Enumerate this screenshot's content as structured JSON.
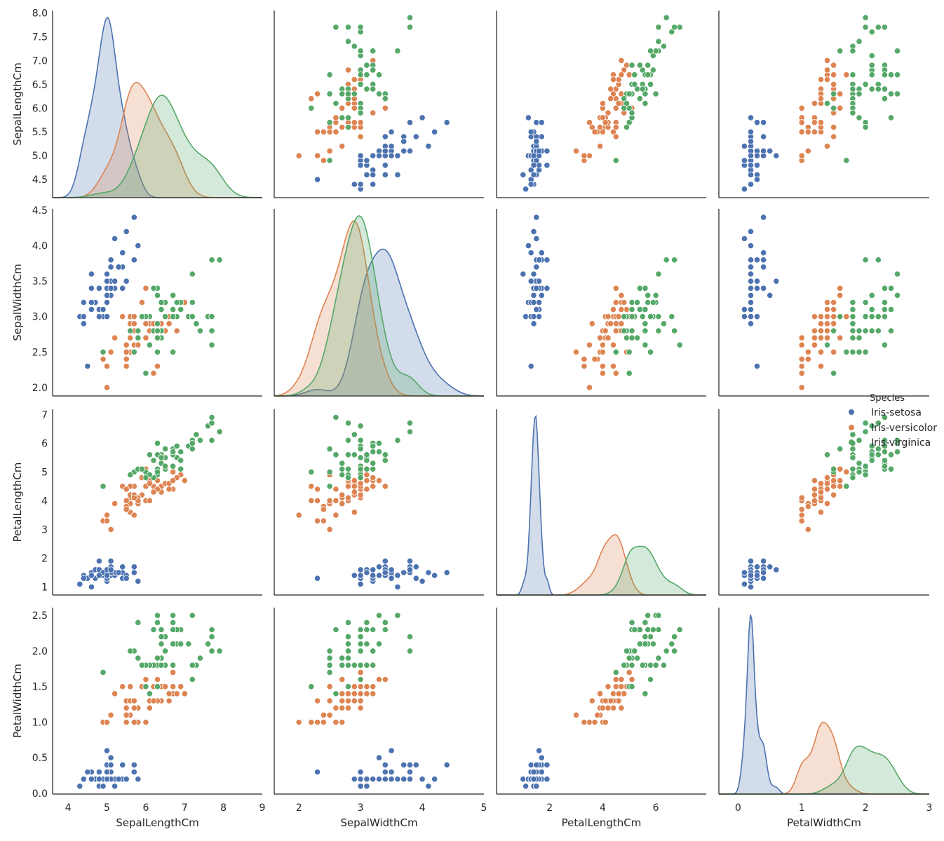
{
  "chart_data": {
    "type": "scatter",
    "variables": [
      "SepalLengthCm",
      "SepalWidthCm",
      "PetalLengthCm",
      "PetalWidthCm"
    ],
    "diagonal": "kde",
    "legend": {
      "title": "Species",
      "placement": "right",
      "entries": [
        "Iris-setosa",
        "Iris-versicolor",
        "Iris-virginica"
      ]
    },
    "colors": {
      "Iris-setosa": "#4c72b0",
      "Iris-versicolor": "#dd8452",
      "Iris-virginica": "#55a868"
    },
    "axes": {
      "SepalLengthCm": {
        "range": [
          3.6,
          9.0
        ],
        "ticks": [
          "4",
          "5",
          "6",
          "7",
          "8",
          "9"
        ],
        "row_range": [
          4.12,
          8.05
        ],
        "row_ticks": [
          "4.5",
          "5.0",
          "5.5",
          "6.0",
          "6.5",
          "7.0",
          "7.5",
          "8.0"
        ]
      },
      "SepalWidthCm": {
        "range": [
          1.6,
          5.0
        ],
        "ticks": [
          "2",
          "3",
          "4",
          "5"
        ],
        "row_range": [
          1.88,
          4.52
        ],
        "row_ticks": [
          "2.0",
          "2.5",
          "3.0",
          "3.5",
          "4.0",
          "4.5"
        ]
      },
      "PetalLengthCm": {
        "range": [
          0.0,
          7.9
        ],
        "ticks": [
          "2",
          "4",
          "6"
        ],
        "row_range": [
          0.72,
          7.18
        ],
        "row_ticks": [
          "1",
          "2",
          "3",
          "4",
          "5",
          "6",
          "7"
        ]
      },
      "PetalWidthCm": {
        "range": [
          -0.3,
          3.0
        ],
        "ticks": [
          "0",
          "1",
          "2",
          "3"
        ],
        "row_range": [
          -0.01,
          2.61
        ],
        "row_ticks": [
          "0.0",
          "0.5",
          "1.0",
          "1.5",
          "2.0",
          "2.5"
        ]
      }
    },
    "series": [
      {
        "name": "Iris-setosa",
        "points": [
          [
            5.1,
            3.5,
            1.4,
            0.2
          ],
          [
            4.9,
            3.0,
            1.4,
            0.2
          ],
          [
            4.7,
            3.2,
            1.3,
            0.2
          ],
          [
            4.6,
            3.1,
            1.5,
            0.2
          ],
          [
            5.0,
            3.6,
            1.4,
            0.2
          ],
          [
            5.4,
            3.9,
            1.7,
            0.4
          ],
          [
            4.6,
            3.4,
            1.4,
            0.3
          ],
          [
            5.0,
            3.4,
            1.5,
            0.2
          ],
          [
            4.4,
            2.9,
            1.4,
            0.2
          ],
          [
            4.9,
            3.1,
            1.5,
            0.1
          ],
          [
            5.4,
            3.7,
            1.5,
            0.2
          ],
          [
            4.8,
            3.4,
            1.6,
            0.2
          ],
          [
            4.8,
            3.0,
            1.4,
            0.1
          ],
          [
            4.3,
            3.0,
            1.1,
            0.1
          ],
          [
            5.8,
            4.0,
            1.2,
            0.2
          ],
          [
            5.7,
            4.4,
            1.5,
            0.4
          ],
          [
            5.4,
            3.9,
            1.3,
            0.4
          ],
          [
            5.1,
            3.5,
            1.4,
            0.3
          ],
          [
            5.7,
            3.8,
            1.7,
            0.3
          ],
          [
            5.1,
            3.8,
            1.5,
            0.3
          ],
          [
            5.4,
            3.4,
            1.7,
            0.2
          ],
          [
            5.1,
            3.7,
            1.5,
            0.4
          ],
          [
            4.6,
            3.6,
            1.0,
            0.2
          ],
          [
            5.1,
            3.3,
            1.7,
            0.5
          ],
          [
            4.8,
            3.4,
            1.9,
            0.2
          ],
          [
            5.0,
            3.0,
            1.6,
            0.2
          ],
          [
            5.0,
            3.4,
            1.6,
            0.4
          ],
          [
            5.2,
            3.5,
            1.5,
            0.2
          ],
          [
            5.2,
            3.4,
            1.4,
            0.2
          ],
          [
            4.7,
            3.2,
            1.6,
            0.2
          ],
          [
            4.8,
            3.1,
            1.6,
            0.2
          ],
          [
            5.4,
            3.4,
            1.5,
            0.4
          ],
          [
            5.2,
            4.1,
            1.5,
            0.1
          ],
          [
            5.5,
            4.2,
            1.4,
            0.2
          ],
          [
            4.9,
            3.1,
            1.5,
            0.1
          ],
          [
            5.0,
            3.2,
            1.2,
            0.2
          ],
          [
            5.5,
            3.5,
            1.3,
            0.2
          ],
          [
            4.9,
            3.1,
            1.5,
            0.1
          ],
          [
            4.4,
            3.0,
            1.3,
            0.2
          ],
          [
            5.1,
            3.4,
            1.5,
            0.2
          ],
          [
            5.0,
            3.5,
            1.3,
            0.3
          ],
          [
            4.5,
            2.3,
            1.3,
            0.3
          ],
          [
            4.4,
            3.2,
            1.3,
            0.2
          ],
          [
            5.0,
            3.5,
            1.6,
            0.6
          ],
          [
            5.1,
            3.8,
            1.9,
            0.4
          ],
          [
            4.8,
            3.0,
            1.4,
            0.3
          ],
          [
            5.1,
            3.8,
            1.6,
            0.2
          ],
          [
            4.6,
            3.2,
            1.4,
            0.2
          ],
          [
            5.3,
            3.7,
            1.5,
            0.2
          ],
          [
            5.0,
            3.3,
            1.4,
            0.2
          ]
        ]
      },
      {
        "name": "Iris-versicolor",
        "points": [
          [
            7.0,
            3.2,
            4.7,
            1.4
          ],
          [
            6.4,
            3.2,
            4.5,
            1.5
          ],
          [
            6.9,
            3.1,
            4.9,
            1.5
          ],
          [
            5.5,
            2.3,
            4.0,
            1.3
          ],
          [
            6.5,
            2.8,
            4.6,
            1.5
          ],
          [
            5.7,
            2.8,
            4.5,
            1.3
          ],
          [
            6.3,
            3.3,
            4.7,
            1.6
          ],
          [
            4.9,
            2.4,
            3.3,
            1.0
          ],
          [
            6.6,
            2.9,
            4.6,
            1.3
          ],
          [
            5.2,
            2.7,
            3.9,
            1.4
          ],
          [
            5.0,
            2.0,
            3.5,
            1.0
          ],
          [
            5.9,
            3.0,
            4.2,
            1.5
          ],
          [
            6.0,
            2.2,
            4.0,
            1.0
          ],
          [
            6.1,
            2.9,
            4.7,
            1.4
          ],
          [
            5.6,
            2.9,
            3.6,
            1.3
          ],
          [
            6.7,
            3.1,
            4.4,
            1.4
          ],
          [
            5.6,
            3.0,
            4.5,
            1.5
          ],
          [
            5.8,
            2.7,
            4.1,
            1.0
          ],
          [
            6.2,
            2.2,
            4.5,
            1.5
          ],
          [
            5.6,
            2.5,
            3.9,
            1.1
          ],
          [
            5.9,
            3.2,
            4.8,
            1.8
          ],
          [
            6.1,
            2.8,
            4.0,
            1.3
          ],
          [
            6.3,
            2.5,
            4.9,
            1.5
          ],
          [
            6.1,
            2.8,
            4.7,
            1.2
          ],
          [
            6.4,
            2.9,
            4.3,
            1.3
          ],
          [
            6.6,
            3.0,
            4.4,
            1.4
          ],
          [
            6.8,
            2.8,
            4.8,
            1.4
          ],
          [
            6.7,
            3.0,
            5.0,
            1.7
          ],
          [
            6.0,
            2.9,
            4.5,
            1.5
          ],
          [
            5.7,
            2.6,
            3.5,
            1.0
          ],
          [
            5.5,
            2.4,
            3.8,
            1.1
          ],
          [
            5.5,
            2.4,
            3.7,
            1.0
          ],
          [
            5.8,
            2.7,
            3.9,
            1.2
          ],
          [
            6.0,
            2.7,
            5.1,
            1.6
          ],
          [
            5.4,
            3.0,
            4.5,
            1.5
          ],
          [
            6.0,
            3.4,
            4.5,
            1.6
          ],
          [
            6.7,
            3.1,
            4.7,
            1.5
          ],
          [
            6.3,
            2.3,
            4.4,
            1.3
          ],
          [
            5.6,
            3.0,
            4.1,
            1.3
          ],
          [
            5.5,
            2.5,
            4.0,
            1.3
          ],
          [
            5.5,
            2.6,
            4.4,
            1.2
          ],
          [
            6.1,
            3.0,
            4.6,
            1.4
          ],
          [
            5.8,
            2.6,
            4.0,
            1.2
          ],
          [
            5.0,
            2.3,
            3.3,
            1.0
          ],
          [
            5.6,
            2.7,
            4.2,
            1.3
          ],
          [
            5.7,
            3.0,
            4.2,
            1.2
          ],
          [
            5.7,
            2.9,
            4.2,
            1.3
          ],
          [
            6.2,
            2.9,
            4.3,
            1.3
          ],
          [
            5.1,
            2.5,
            3.0,
            1.1
          ],
          [
            5.7,
            2.8,
            4.1,
            1.3
          ]
        ]
      },
      {
        "name": "Iris-virginica",
        "points": [
          [
            6.3,
            3.3,
            6.0,
            2.5
          ],
          [
            5.8,
            2.7,
            5.1,
            1.9
          ],
          [
            7.1,
            3.0,
            5.9,
            2.1
          ],
          [
            6.3,
            2.9,
            5.6,
            1.8
          ],
          [
            6.5,
            3.0,
            5.8,
            2.2
          ],
          [
            7.6,
            3.0,
            6.6,
            2.1
          ],
          [
            4.9,
            2.5,
            4.5,
            1.7
          ],
          [
            7.3,
            2.9,
            6.3,
            1.8
          ],
          [
            6.7,
            2.5,
            5.8,
            1.8
          ],
          [
            7.2,
            3.6,
            6.1,
            2.5
          ],
          [
            6.5,
            3.2,
            5.1,
            2.0
          ],
          [
            6.4,
            2.7,
            5.3,
            1.9
          ],
          [
            6.8,
            3.0,
            5.5,
            2.1
          ],
          [
            5.7,
            2.5,
            5.0,
            2.0
          ],
          [
            5.8,
            2.8,
            5.1,
            2.4
          ],
          [
            6.4,
            3.2,
            5.3,
            2.3
          ],
          [
            6.5,
            3.0,
            5.5,
            1.8
          ],
          [
            7.7,
            3.8,
            6.7,
            2.2
          ],
          [
            7.7,
            2.6,
            6.9,
            2.3
          ],
          [
            6.0,
            2.2,
            5.0,
            1.5
          ],
          [
            6.9,
            3.2,
            5.7,
            2.3
          ],
          [
            5.6,
            2.8,
            4.9,
            2.0
          ],
          [
            7.7,
            2.8,
            6.7,
            2.0
          ],
          [
            6.3,
            2.7,
            4.9,
            1.8
          ],
          [
            6.7,
            3.3,
            5.7,
            2.1
          ],
          [
            7.2,
            3.2,
            6.0,
            1.8
          ],
          [
            6.2,
            2.8,
            4.8,
            1.8
          ],
          [
            6.1,
            3.0,
            4.9,
            1.8
          ],
          [
            6.4,
            2.8,
            5.6,
            2.1
          ],
          [
            7.2,
            3.0,
            5.8,
            1.6
          ],
          [
            7.4,
            2.8,
            6.1,
            1.9
          ],
          [
            7.9,
            3.8,
            6.4,
            2.0
          ],
          [
            6.4,
            2.8,
            5.6,
            2.2
          ],
          [
            6.3,
            2.8,
            5.1,
            1.5
          ],
          [
            6.1,
            2.6,
            5.6,
            1.4
          ],
          [
            7.7,
            3.0,
            6.1,
            2.3
          ],
          [
            6.3,
            3.4,
            5.6,
            2.4
          ],
          [
            6.4,
            3.1,
            5.5,
            1.8
          ],
          [
            6.0,
            3.0,
            4.8,
            1.8
          ],
          [
            6.9,
            3.1,
            5.4,
            2.1
          ],
          [
            6.7,
            3.1,
            5.6,
            2.4
          ],
          [
            6.9,
            3.1,
            5.1,
            2.3
          ],
          [
            5.8,
            2.7,
            5.1,
            1.9
          ],
          [
            6.8,
            3.2,
            5.9,
            2.3
          ],
          [
            6.7,
            3.3,
            5.7,
            2.5
          ],
          [
            6.7,
            3.0,
            5.2,
            2.3
          ],
          [
            6.3,
            2.5,
            5.0,
            1.9
          ],
          [
            6.5,
            3.0,
            5.2,
            2.0
          ],
          [
            6.2,
            3.4,
            5.4,
            2.3
          ],
          [
            5.9,
            3.0,
            5.1,
            1.8
          ]
        ]
      }
    ]
  }
}
